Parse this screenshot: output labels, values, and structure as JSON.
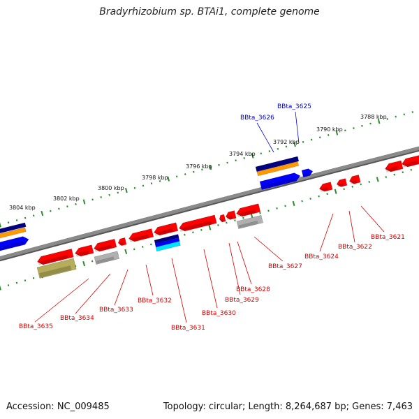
{
  "header": {
    "title": "Bradyrhizobium sp. BTAi1, complete genome"
  },
  "footer": {
    "accession": "Accession: NC_009485",
    "summary": "Topology: circular; Length: 8,264,687 bp; Genes: 7,463"
  },
  "colors": {
    "backbone": "#8a8a8a",
    "ticks": "#2e8b2e",
    "forward_label": "#0000cc",
    "reverse_label": "#d40000",
    "gene_red": "#ff0000",
    "gene_blue": "#0000ff",
    "gene_navy": "#000080",
    "gene_orange": "#ff9900",
    "gene_grey": "#b0b0b0",
    "gene_olive": "#b5ad5a",
    "gene_cyan": "#00e5ff"
  },
  "scale_labels": [
    "3804 kbp",
    "3802 kbp",
    "3800 kbp",
    "3798 kbp",
    "3796 kbp",
    "3794 kbp",
    "3792 kbp",
    "3790 kbp",
    "3788 kbp"
  ],
  "gene_labels": {
    "forward": [
      "BBta_3626",
      "BBta_3625"
    ],
    "reverse": [
      "BBta_3635",
      "BBta_3634",
      "BBta_3633",
      "BBta_3632",
      "BBta_3631",
      "BBta_3630",
      "BBta_3629",
      "BBta_3628",
      "BBta_3627",
      "BBta_3624",
      "BBta_3622",
      "BBta_3621"
    ]
  }
}
